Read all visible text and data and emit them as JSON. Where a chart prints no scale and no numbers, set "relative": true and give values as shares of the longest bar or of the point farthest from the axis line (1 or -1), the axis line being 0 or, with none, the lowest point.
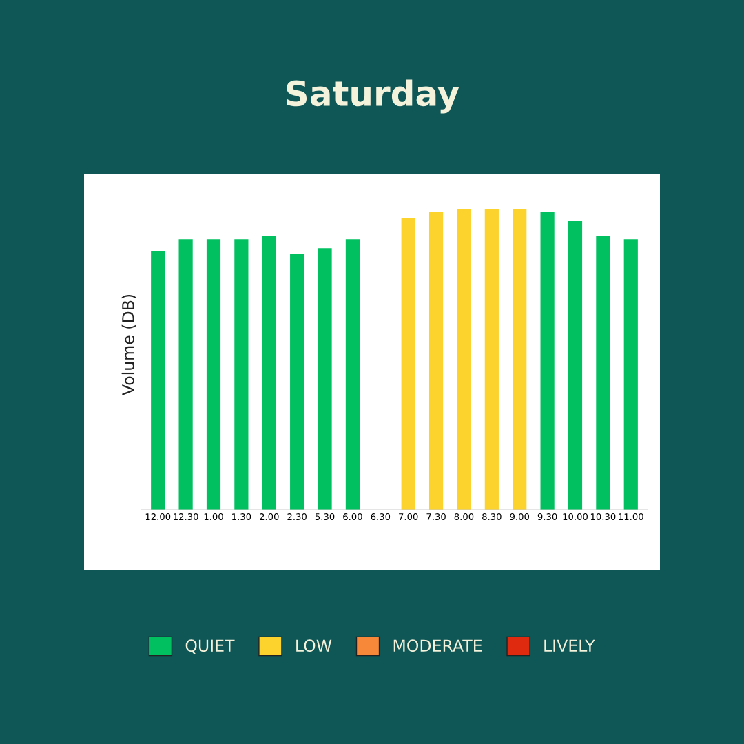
{
  "chart_data": {
    "type": "bar",
    "title": "Saturday",
    "ylabel": "Volume (DB)",
    "relative": true,
    "categories": [
      "12.00",
      "12.30",
      "1.00",
      "1.30",
      "2.00",
      "2.30",
      "5.30",
      "6.00",
      "6.30",
      "7.00",
      "7.30",
      "8.00",
      "8.30",
      "9.00",
      "9.30",
      "10.00",
      "10.30",
      "11.00"
    ],
    "series": [
      {
        "name": "QUIET",
        "color": "#00c060",
        "values": [
          0.86,
          0.9,
          0.9,
          0.9,
          0.91,
          0.85,
          0.87,
          0.9,
          null,
          null,
          null,
          null,
          null,
          null,
          0.99,
          0.96,
          0.91,
          0.9
        ]
      },
      {
        "name": "LOW",
        "color": "#fcd22c",
        "values": [
          null,
          null,
          null,
          null,
          null,
          null,
          null,
          null,
          null,
          0.97,
          0.99,
          1.0,
          1.0,
          1.0,
          null,
          null,
          null,
          null
        ]
      },
      {
        "name": "MODERATE",
        "color": "#f7883a",
        "values": [
          null,
          null,
          null,
          null,
          null,
          null,
          null,
          null,
          null,
          null,
          null,
          null,
          null,
          null,
          null,
          null,
          null,
          null
        ]
      },
      {
        "name": "LIVELY",
        "color": "#e02a10",
        "values": [
          null,
          null,
          null,
          null,
          null,
          null,
          null,
          null,
          null,
          null,
          null,
          null,
          null,
          null,
          null,
          null,
          null,
          null
        ]
      }
    ],
    "legend": "bottom",
    "grid": false
  }
}
